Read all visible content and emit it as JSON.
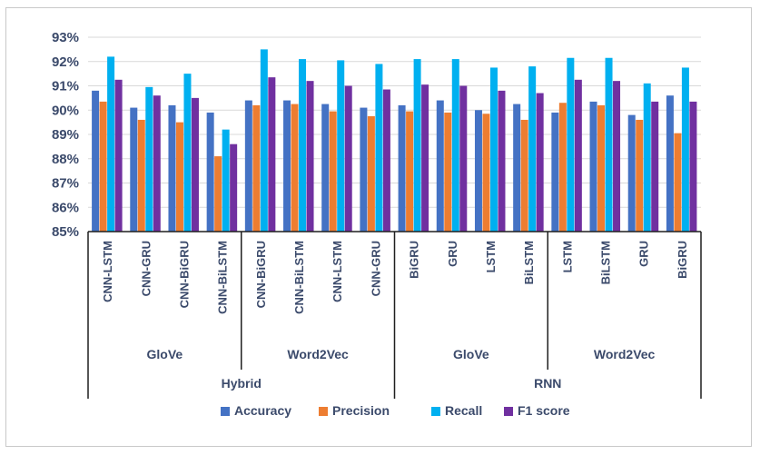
{
  "chart_data": {
    "type": "bar",
    "title": "",
    "xlabel": "",
    "ylabel": "",
    "ylim": [
      85,
      93
    ],
    "y_ticks": [
      "85%",
      "86%",
      "87%",
      "88%",
      "89%",
      "90%",
      "91%",
      "92%",
      "93%"
    ],
    "grid": true,
    "legend_position": "bottom",
    "categories": [
      "CNN-LSTM",
      "CNN-GRU",
      "CNN-BiGRU",
      "CNN-BiLSTM",
      "CNN-BiGRU",
      "CNN-BiLSTM",
      "CNN-LSTM",
      "CNN-GRU",
      "BiGRU",
      "GRU",
      "LSTM",
      "BiLSTM",
      "LSTM",
      "BiLSTM",
      "GRU",
      "BiGRU"
    ],
    "embedding_groups": [
      {
        "label": "GloVe",
        "count": 4
      },
      {
        "label": "Word2Vec",
        "count": 4
      },
      {
        "label": "GloVe",
        "count": 4
      },
      {
        "label": "Word2Vec",
        "count": 4
      }
    ],
    "model_groups": [
      {
        "label": "Hybrid",
        "count": 8
      },
      {
        "label": "RNN",
        "count": 8
      }
    ],
    "series": [
      {
        "name": "Accuracy",
        "color": "#4472c4",
        "values": [
          90.8,
          90.1,
          90.2,
          89.9,
          90.4,
          90.4,
          90.25,
          90.1,
          90.2,
          90.4,
          90.0,
          90.25,
          89.9,
          90.35,
          89.8,
          90.6
        ]
      },
      {
        "name": "Precision",
        "color": "#ed7d31",
        "values": [
          90.35,
          89.6,
          89.5,
          88.1,
          90.2,
          90.25,
          89.95,
          89.75,
          89.95,
          89.9,
          89.85,
          89.6,
          90.3,
          90.2,
          89.6,
          89.05
        ]
      },
      {
        "name": "Recall",
        "color": "#00b0f0",
        "values": [
          92.2,
          90.95,
          91.5,
          89.2,
          92.5,
          92.1,
          92.05,
          91.9,
          92.1,
          92.1,
          91.75,
          91.8,
          92.15,
          92.15,
          91.1,
          91.75
        ]
      },
      {
        "name": "F1 score",
        "color": "#7030a0",
        "values": [
          91.25,
          90.6,
          90.5,
          88.6,
          91.35,
          91.2,
          91.0,
          90.85,
          91.05,
          91.0,
          90.8,
          90.7,
          91.25,
          91.2,
          90.35,
          90.35
        ]
      }
    ]
  }
}
